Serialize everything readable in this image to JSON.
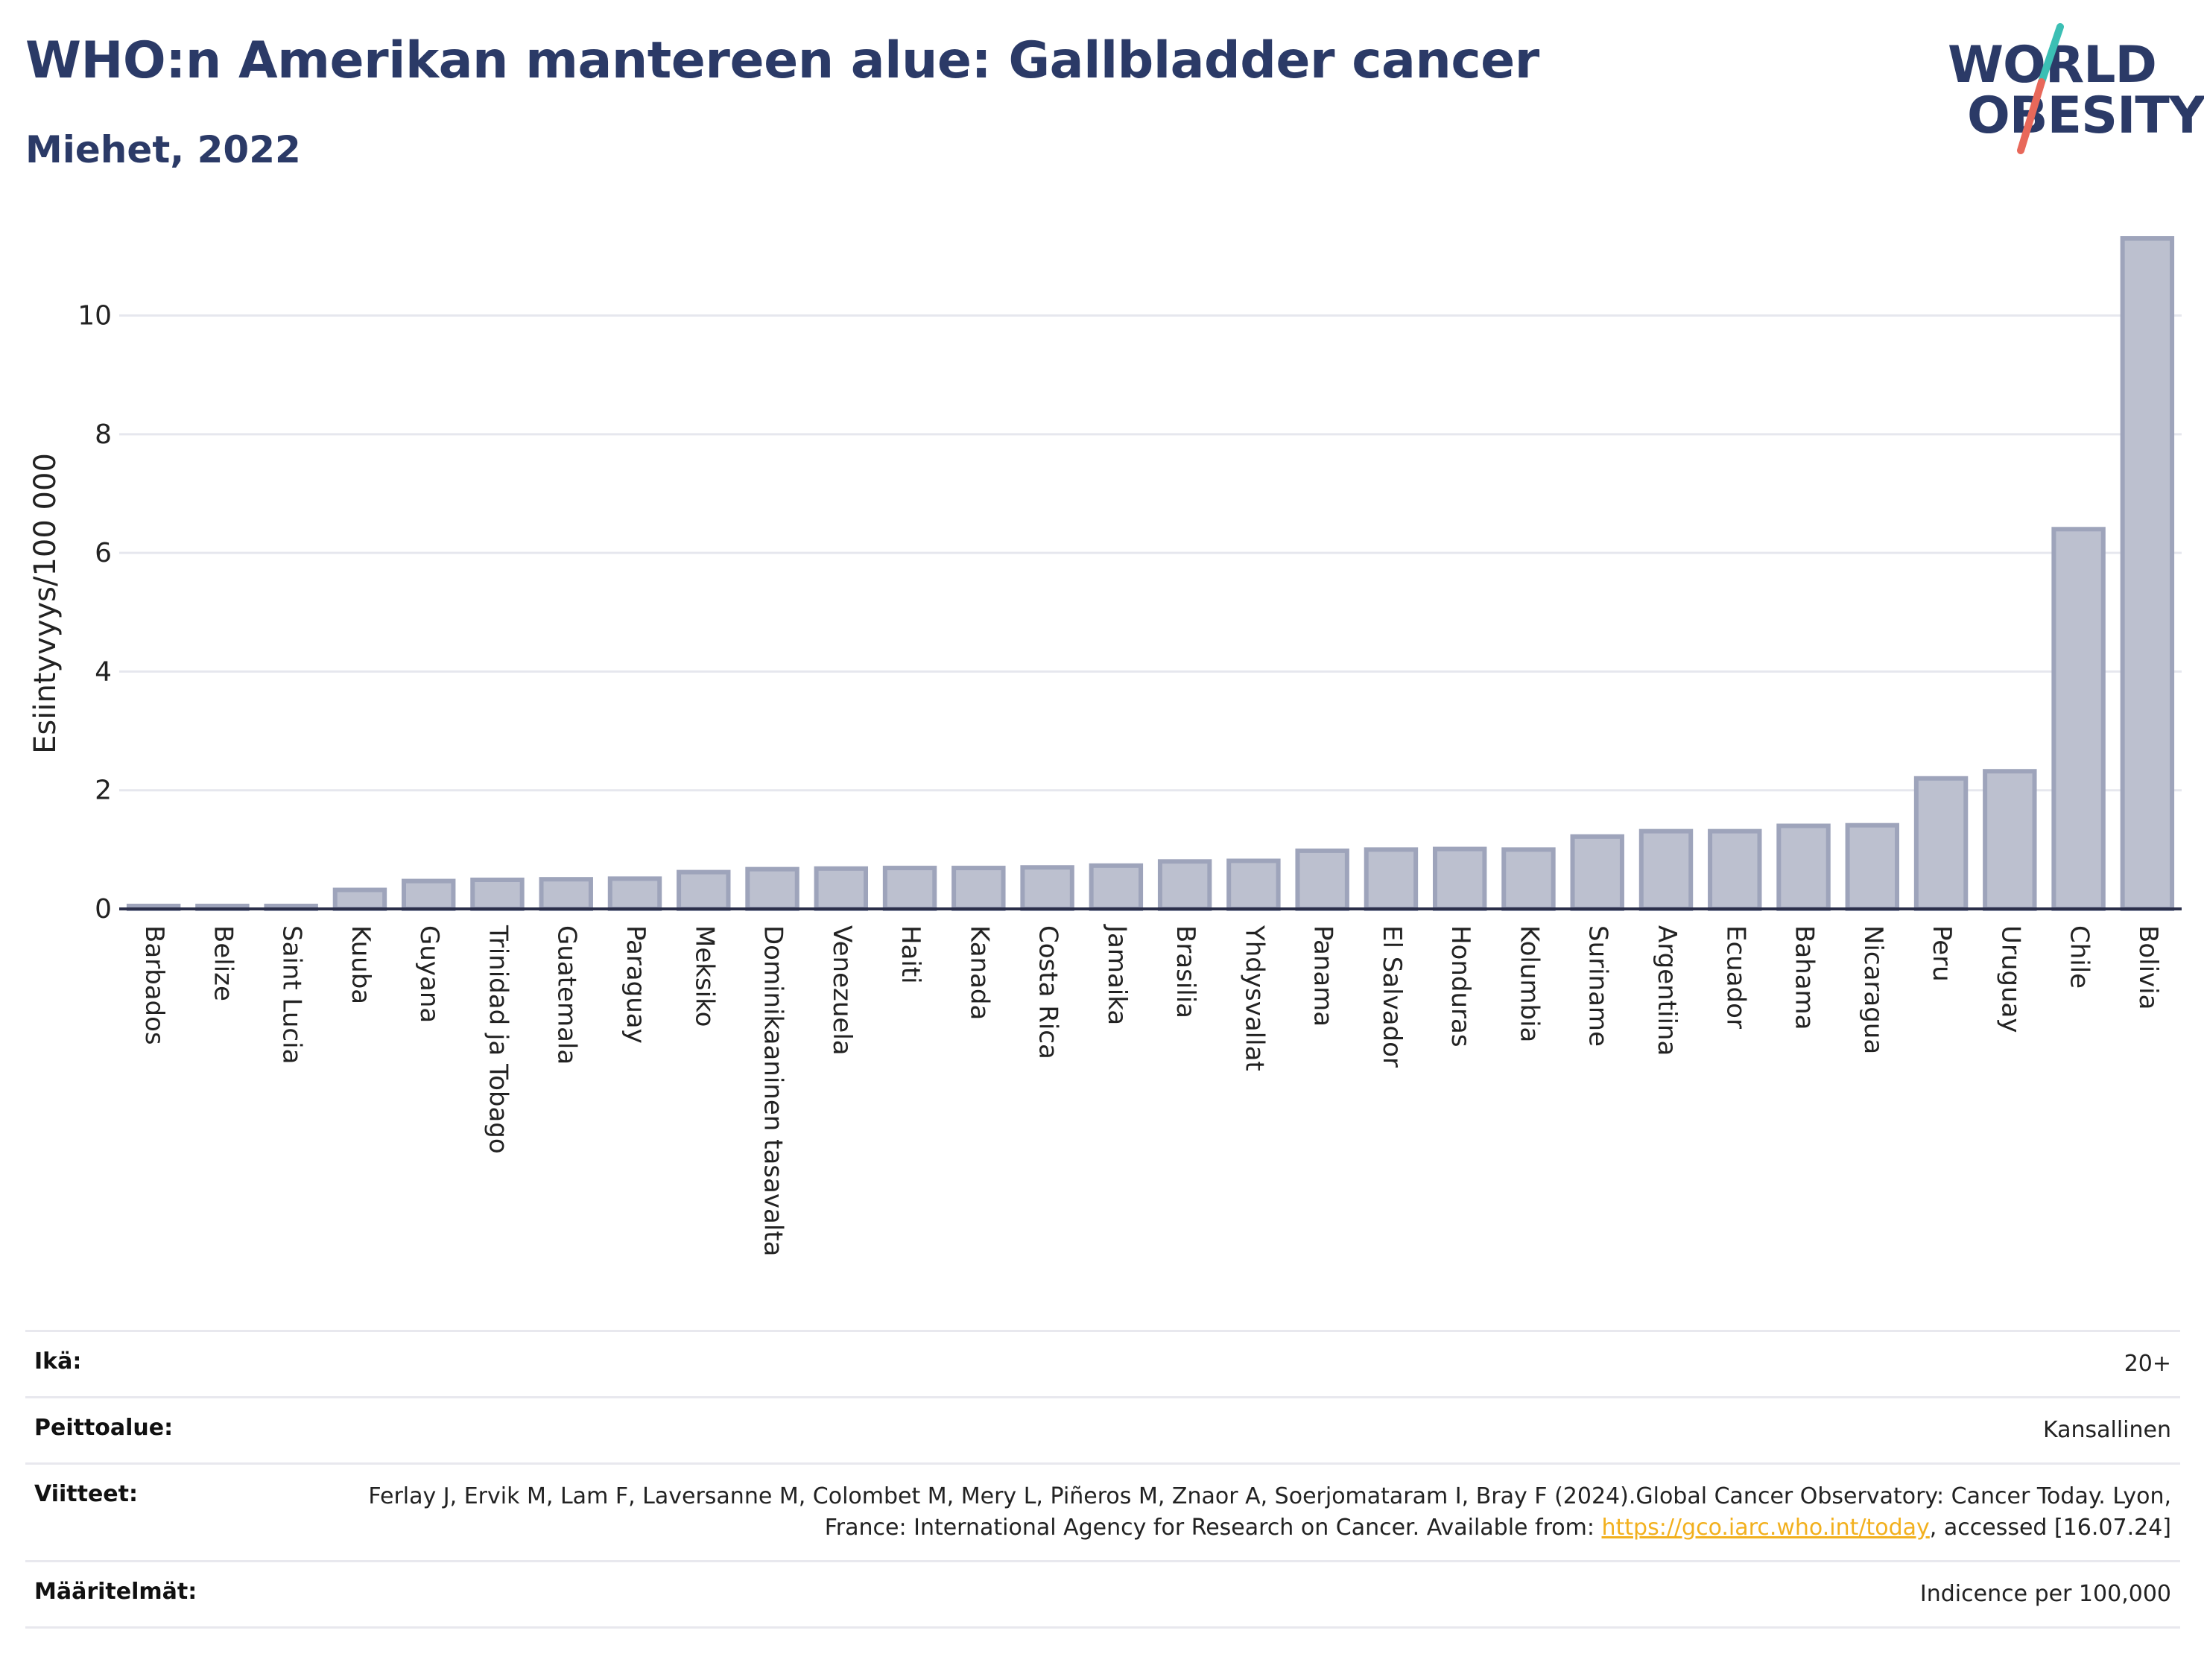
{
  "header": {
    "title": "WHO:n Amerikan mantereen alue: Gallbladder cancer",
    "subtitle": "Miehet, 2022"
  },
  "logo": {
    "line1": "WORLD",
    "line2": "OBESITY",
    "slash_colors": [
      "#3bbfb4",
      "#e8685a"
    ]
  },
  "chart_data": {
    "type": "bar",
    "ylabel": "Esiintyvyys/100 000",
    "ylim": [
      0,
      11.3
    ],
    "yticks": [
      0,
      2,
      4,
      6,
      8,
      10
    ],
    "grid": true,
    "bar_color": "#bcc0cf",
    "bar_edge_color": "#9ea4bb",
    "categories": [
      "Barbados",
      "Belize",
      "Saint Lucia",
      "Kuuba",
      "Guyana",
      "Trinidad ja Tobago",
      "Guatemala",
      "Paraguay",
      "Meksiko",
      "Dominikaaninen tasavalta",
      "Venezuela",
      "Haiti",
      "Kanada",
      "Costa Rica",
      "Jamaika",
      "Brasilia",
      "Yhdysvallat",
      "Panama",
      "El Salvador",
      "Honduras",
      "Kolumbia",
      "Suriname",
      "Argentiina",
      "Ecuador",
      "Bahama",
      "Nicaragua",
      "Peru",
      "Uruguay",
      "Chile",
      "Bolivia"
    ],
    "values": [
      0.05,
      0.05,
      0.05,
      0.32,
      0.47,
      0.49,
      0.5,
      0.51,
      0.62,
      0.67,
      0.68,
      0.69,
      0.69,
      0.7,
      0.73,
      0.8,
      0.81,
      0.98,
      1.0,
      1.01,
      1.0,
      1.22,
      1.31,
      1.31,
      1.4,
      1.41,
      2.2,
      2.32,
      6.4,
      11.3
    ]
  },
  "meta": {
    "rows": [
      {
        "label": "Ikä:",
        "value": "20+"
      },
      {
        "label": "Peittoalue:",
        "value": "Kansallinen"
      },
      {
        "label": "Viitteet:",
        "value_pre": "Ferlay J, Ervik M, Lam F, Laversanne M, Colombet M, Mery L, Piñeros M, Znaor A, Soerjomataram I, Bray F (2024).Global Cancer Observatory: Cancer Today. Lyon, France: International Agency for Research on Cancer. Available from: ",
        "link": "https://gco.iarc.who.int/today",
        "value_post": ", accessed [16.07.24]"
      },
      {
        "label": "Määritelmät:",
        "value": "Indicence per 100,000"
      }
    ]
  }
}
